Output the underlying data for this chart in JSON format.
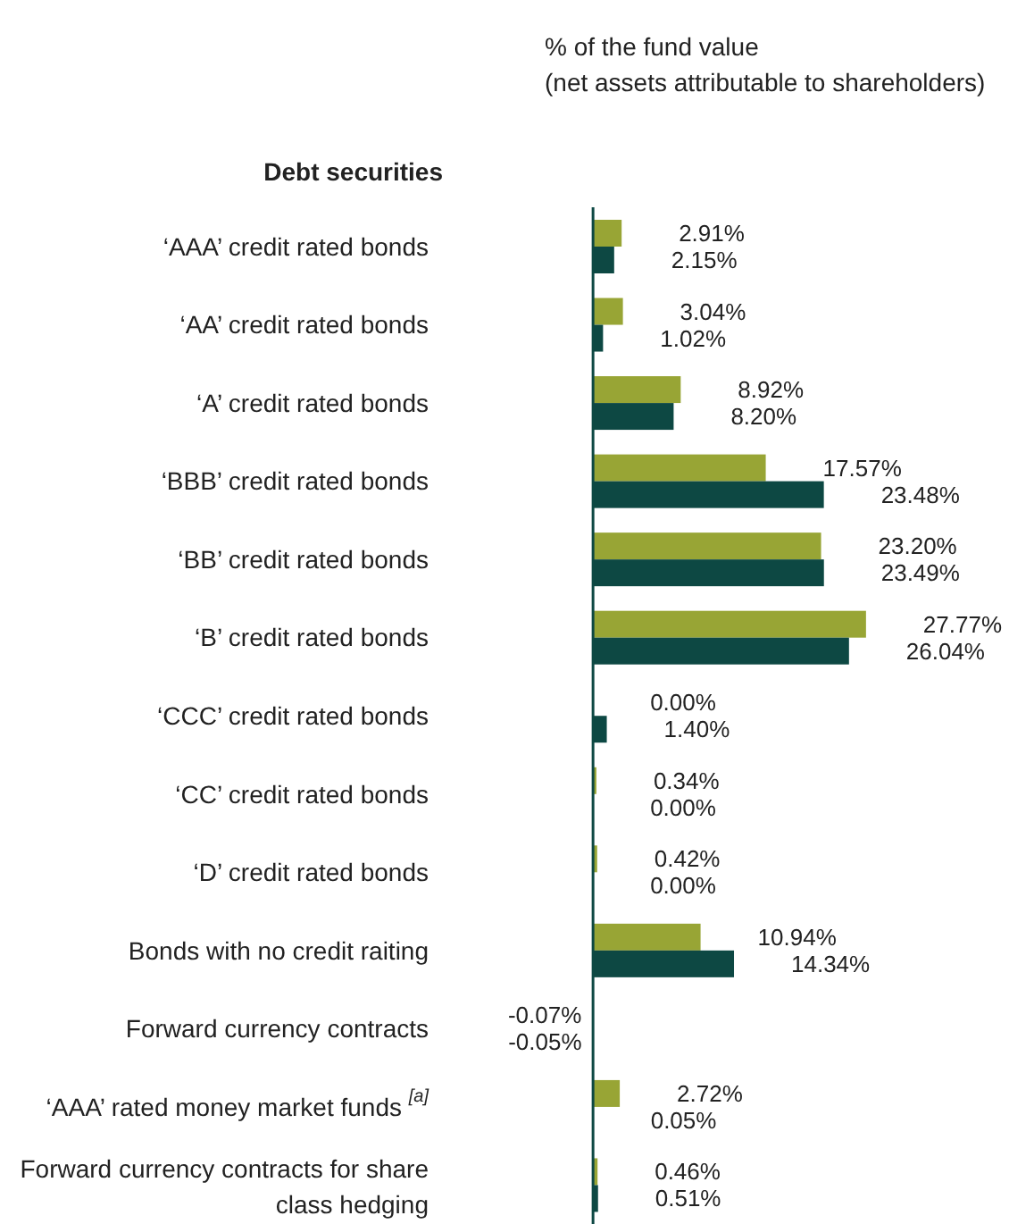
{
  "chart_data": {
    "type": "bar",
    "orientation": "horizontal",
    "title": "% of the fund value",
    "subtitle": "(net assets attributable to shareholders)",
    "annotations": [
      "Debt securities"
    ],
    "categories": [
      "‘AAA’ credit rated bonds",
      "‘AA’ credit rated bonds",
      "‘A’ credit rated bonds",
      "‘BBB’ credit rated bonds",
      "‘BB’ credit rated bonds",
      "‘B’ credit rated bonds",
      "‘CCC’ credit rated bonds",
      "‘CC’ credit rated bonds",
      "‘D’ credit rated bonds",
      "Bonds with no credit raiting",
      "Forward currency contracts",
      "‘AAA’ rated money market funds $^{[a]}$",
      "Forward currency contracts for share class hedging"
    ],
    "series": [
      {
        "color": "#98a535",
        "values": [
          2.91,
          3.04,
          8.92,
          17.57,
          23.2,
          27.77,
          0.0,
          0.34,
          0.42,
          10.94,
          -0.07,
          2.72,
          0.46
        ],
        "value_labels": [
          "2.91%",
          "3.04%",
          "8.92%",
          "17.57%",
          "23.20%",
          "27.77%",
          "0.00%",
          "0.34%",
          "0.42%",
          "10.94%",
          "-0.07%",
          "2.72%",
          "0.46%"
        ]
      },
      {
        "color": "#0d4843",
        "values": [
          2.15,
          1.02,
          8.2,
          23.48,
          23.49,
          26.04,
          1.4,
          0.0,
          0.0,
          14.34,
          -0.05,
          0.05,
          0.51
        ],
        "value_labels": [
          "2.15%",
          "1.02%",
          "8.20%",
          "23.48%",
          "23.49%",
          "26.04%",
          "1.40%",
          "0.00%",
          "0.00%",
          "14.34%",
          "-0.05%",
          "0.05%",
          "0.51%"
        ]
      }
    ],
    "grid": false,
    "legend": false
  }
}
